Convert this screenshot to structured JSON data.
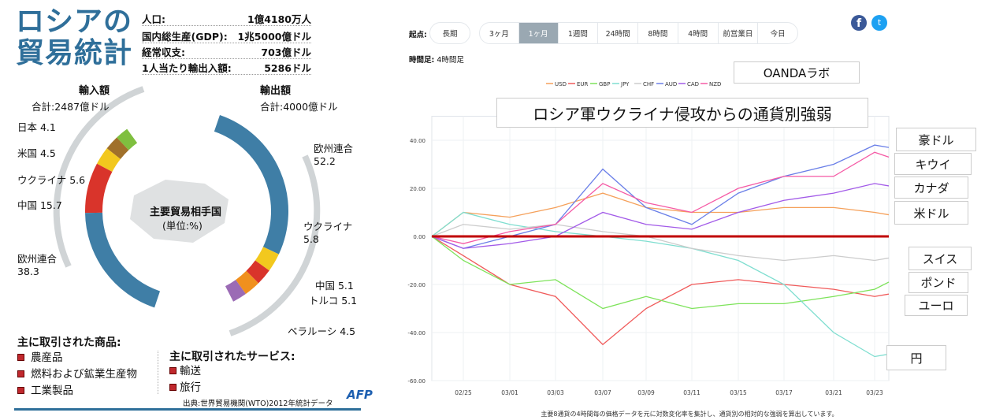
{
  "infographic": {
    "title_line1": "ロシアの",
    "title_line2": "貿易統計",
    "stats": [
      {
        "label": "人口:",
        "value": "1億4180万人"
      },
      {
        "label": "国内総生産(GDP):",
        "value": "1兆5000億ドル"
      },
      {
        "label": "経常収支:",
        "value": "703億ドル"
      },
      {
        "label": "1人当たり輸出入額:",
        "value": "5286ドル"
      }
    ],
    "imports_title": "輸入額",
    "imports_total": "合計:2487億ドル",
    "exports_title": "輸出額",
    "exports_total": "合計:4000億ドル",
    "center_label": "主要貿易相手国",
    "center_unit": "(単位:%)",
    "goods_title": "主に取引された商品:",
    "goods": [
      "農産品",
      "燃料および鉱業生産物",
      "工業製品"
    ],
    "services_title": "主に取引されたサービス:",
    "services": [
      "輸送",
      "旅行"
    ],
    "source": "出典:世界貿易機関(WTO)2012年統計データ",
    "logo": "AFP"
  },
  "chart_data": [
    {
      "type": "pie",
      "title": "輸入額",
      "subtitle": "合計:2487億ドル",
      "slices": [
        {
          "name": "日本",
          "value": 4.1,
          "label": "日本 4.1",
          "color": "#7fbf3f"
        },
        {
          "name": "米国",
          "value": 4.5,
          "label": "米国 4.5",
          "color": "#a0702a"
        },
        {
          "name": "ウクライナ",
          "value": 5.6,
          "label": "ウクライナ 5.6",
          "color": "#f2c81e"
        },
        {
          "name": "中国",
          "value": 15.7,
          "label": "中国 15.7",
          "color": "#d9342b"
        },
        {
          "name": "欧州連合",
          "value": 38.3,
          "label": "欧州連合 38.3",
          "color": "#3f7ea6"
        }
      ]
    },
    {
      "type": "pie",
      "title": "輸出額",
      "subtitle": "合計:4000億ドル",
      "slices": [
        {
          "name": "欧州連合",
          "value": 52.2,
          "label": "欧州連合 52.2",
          "color": "#3f7ea6"
        },
        {
          "name": "ウクライナ",
          "value": 5.8,
          "label": "ウクライナ 5.8",
          "color": "#f2c81e"
        },
        {
          "name": "中国",
          "value": 5.1,
          "label": "中国 5.1",
          "color": "#d9342b"
        },
        {
          "name": "トルコ",
          "value": 5.1,
          "label": "トルコ 5.1",
          "color": "#f0901e"
        },
        {
          "name": "ベラルーシ",
          "value": 4.5,
          "label": "ベラルーシ 4.5",
          "color": "#9b6bb5"
        }
      ]
    },
    {
      "type": "line",
      "title": "ロシア軍ウクライナ侵攻からの通貨別強弱",
      "x": [
        "",
        "02/25",
        "03/01",
        "03/03",
        "03/07",
        "03/09",
        "03/11",
        "03/15",
        "03/17",
        "03/21",
        "03/23",
        ""
      ],
      "xticks": [
        "02/25",
        "03/01",
        "03/03",
        "03/07",
        "03/09",
        "03/11",
        "03/15",
        "03/17",
        "03/21",
        "03/23"
      ],
      "yticks": [
        "40.00",
        "20.00",
        "0.00",
        "-20.00",
        "-40.00",
        "-60.00"
      ],
      "ylim": [
        -60,
        50
      ],
      "grid": true,
      "legend": "top",
      "series": [
        {
          "name": "USD",
          "color": "#f5a05a",
          "values": [
            0,
            10,
            8,
            12,
            18,
            12,
            10,
            10,
            12,
            12,
            10,
            9
          ]
        },
        {
          "name": "EUR",
          "color": "#f05a5a",
          "values": [
            0,
            -8,
            -20,
            -25,
            -45,
            -30,
            -20,
            -18,
            -20,
            -22,
            -25,
            -24
          ]
        },
        {
          "name": "GBP",
          "color": "#7de35a",
          "values": [
            0,
            -10,
            -20,
            -18,
            -30,
            -25,
            -30,
            -28,
            -28,
            -25,
            -22,
            -19
          ]
        },
        {
          "name": "JPY",
          "color": "#7fded0",
          "values": [
            0,
            10,
            5,
            2,
            0,
            -2,
            -5,
            -10,
            -20,
            -40,
            -50,
            -49
          ]
        },
        {
          "name": "CHF",
          "color": "#cccccc",
          "values": [
            0,
            5,
            3,
            5,
            2,
            0,
            -5,
            -8,
            -10,
            -8,
            -10,
            -9
          ]
        },
        {
          "name": "AUD",
          "color": "#6a7fe8",
          "values": [
            0,
            -5,
            0,
            5,
            28,
            12,
            5,
            18,
            25,
            30,
            38,
            37
          ]
        },
        {
          "name": "CAD",
          "color": "#a25ae8",
          "values": [
            0,
            -5,
            -3,
            0,
            10,
            5,
            3,
            10,
            15,
            18,
            22,
            21
          ]
        },
        {
          "name": "NZD",
          "color": "#f55aa5",
          "values": [
            0,
            -3,
            2,
            5,
            22,
            14,
            10,
            20,
            25,
            25,
            35,
            33
          ]
        }
      ],
      "annotations": [
        "豪ドル",
        "キウイ",
        "カナダ",
        "米ドル",
        "スイス",
        "ポンド",
        "ユーロ",
        "円"
      ]
    }
  ],
  "controls": {
    "origin_label": "起点:",
    "long_term": "長期",
    "periods": [
      "3ヶ月",
      "1ヶ月",
      "1週間",
      "24時間",
      "8時間",
      "4時間",
      "前営業日",
      "今日"
    ],
    "selected": "1ヶ月",
    "timeframe_label": "時間足:",
    "timeframe": "4時間足"
  },
  "overlay": {
    "brand": "OANDAラボ"
  },
  "footnote": "主要8通貨の4時間毎の価格データを元に対数変化率を集計し、通貨別の相対的な強弱を算出しています。"
}
